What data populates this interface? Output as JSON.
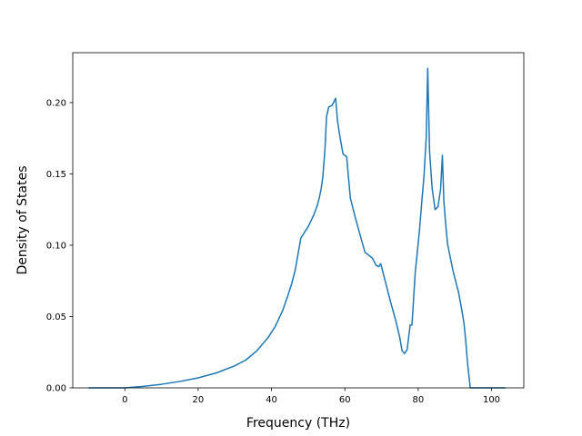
{
  "chart_data": {
    "type": "line",
    "title": "",
    "xlabel": "Frequency (THz)",
    "ylabel": "Density of States",
    "xlim": [
      -14.2,
      108.8
    ],
    "ylim": [
      0.0,
      0.235
    ],
    "grid": false,
    "xticks": [
      0,
      20,
      40,
      60,
      80,
      100
    ],
    "xtick_labels": [
      "0",
      "20",
      "40",
      "60",
      "80",
      "100"
    ],
    "yticks": [
      0.0,
      0.05,
      0.1,
      0.15,
      0.2
    ],
    "ytick_labels": [
      "0.00",
      "0.05",
      "0.10",
      "0.15",
      "0.20"
    ],
    "series": [
      {
        "color": "#1f77b4",
        "x": [
          -9.7,
          0,
          5,
          10,
          15,
          20,
          25,
          30,
          33,
          36,
          39,
          41,
          43,
          44.5,
          45.5,
          46.5,
          48,
          50,
          51.5,
          52.5,
          53,
          53.5,
          54,
          54.6,
          55,
          55.6,
          56.5,
          57.5,
          58,
          58.8,
          59.5,
          60.5,
          61.5,
          63,
          64.5,
          65.5,
          66.5,
          67.5,
          68.5,
          69.2,
          69.8,
          71,
          72.5,
          74,
          75,
          75.6,
          76.3,
          77,
          77.8,
          78.3,
          79.2,
          80.3,
          81,
          81.6,
          82.2,
          82.6,
          83.1,
          83.8,
          84.6,
          85.4,
          86.1,
          86.6,
          87,
          87.4,
          88,
          89.5,
          91,
          91.8,
          92.5,
          93,
          93.4,
          94.2,
          100,
          103.6
        ],
        "y": [
          0.0,
          0.0,
          0.001,
          0.0025,
          0.0045,
          0.007,
          0.0105,
          0.0155,
          0.0195,
          0.026,
          0.035,
          0.043,
          0.054,
          0.065,
          0.073,
          0.083,
          0.105,
          0.113,
          0.121,
          0.128,
          0.133,
          0.139,
          0.148,
          0.168,
          0.19,
          0.197,
          0.198,
          0.203,
          0.187,
          0.174,
          0.164,
          0.162,
          0.133,
          0.118,
          0.104,
          0.095,
          0.093,
          0.091,
          0.086,
          0.085,
          0.087,
          0.075,
          0.06,
          0.046,
          0.035,
          0.026,
          0.024,
          0.027,
          0.044,
          0.044,
          0.081,
          0.109,
          0.131,
          0.149,
          0.176,
          0.224,
          0.166,
          0.14,
          0.125,
          0.127,
          0.139,
          0.163,
          0.131,
          0.118,
          0.101,
          0.082,
          0.067,
          0.056,
          0.045,
          0.032,
          0.019,
          0.0,
          0.0,
          0.0
        ]
      }
    ]
  }
}
